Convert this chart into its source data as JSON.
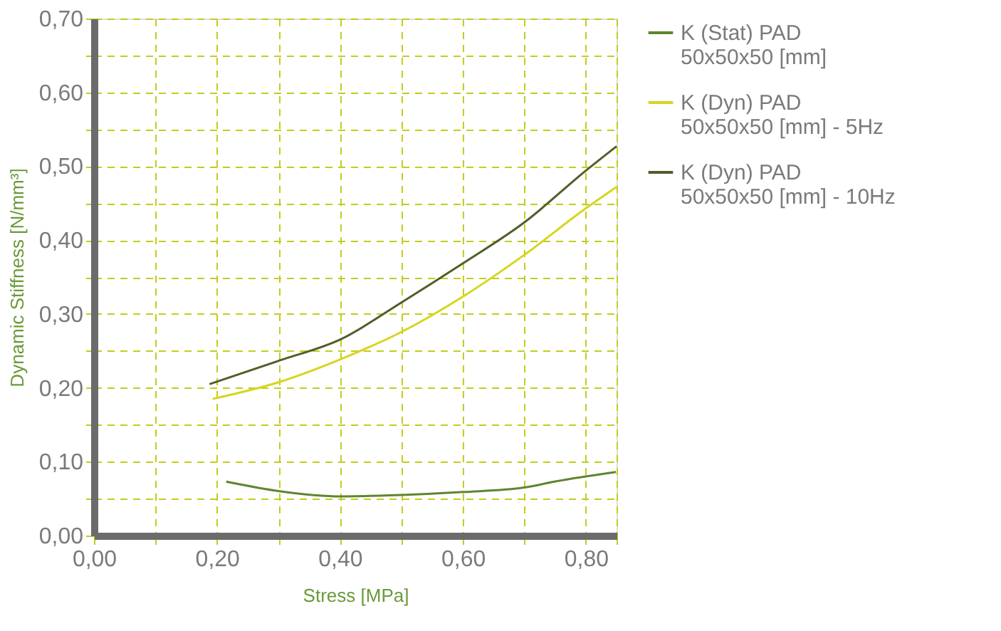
{
  "chart_data": {
    "type": "line",
    "xlabel": "Stress [MPa]",
    "ylabel": "Dynamic Stiffness [N/mm³]",
    "xlim": [
      0,
      0.85
    ],
    "ylim": [
      0,
      0.7
    ],
    "xticks": [
      {
        "value": 0,
        "label": "0,00"
      },
      {
        "value": 0.1,
        "label": null
      },
      {
        "value": 0.2,
        "label": "0,20"
      },
      {
        "value": 0.3,
        "label": null
      },
      {
        "value": 0.4,
        "label": "0,40"
      },
      {
        "value": 0.5,
        "label": null
      },
      {
        "value": 0.6,
        "label": "0,60"
      },
      {
        "value": 0.7,
        "label": null
      },
      {
        "value": 0.8,
        "label": "0,80"
      },
      {
        "value": 0.85,
        "label": null
      }
    ],
    "yticks": [
      {
        "value": 0,
        "label": "0,00"
      },
      {
        "value": 0.05,
        "label": null
      },
      {
        "value": 0.1,
        "label": "0,10"
      },
      {
        "value": 0.15,
        "label": null
      },
      {
        "value": 0.2,
        "label": "0,20"
      },
      {
        "value": 0.25,
        "label": null
      },
      {
        "value": 0.3,
        "label": "0,30"
      },
      {
        "value": 0.35,
        "label": null
      },
      {
        "value": 0.4,
        "label": "0,40"
      },
      {
        "value": 0.45,
        "label": null
      },
      {
        "value": 0.5,
        "label": "0,50"
      },
      {
        "value": 0.55,
        "label": null
      },
      {
        "value": 0.6,
        "label": "0,60"
      },
      {
        "value": 0.65,
        "label": null
      },
      {
        "value": 0.7,
        "label": "0,70"
      }
    ],
    "grid": true,
    "legend": "right",
    "marker": "none",
    "line_style": "solid",
    "series": [
      {
        "name": "K (Stat) PAD\n50x50x50 [mm]",
        "color": "#5e8530",
        "x": [
          0.215,
          0.302,
          0.402,
          0.501,
          0.601,
          0.7,
          0.749,
          0.849
        ],
        "values": [
          0.073,
          0.06,
          0.053,
          0.055,
          0.059,
          0.065,
          0.073,
          0.086
        ]
      },
      {
        "name": "K (Dyn) PAD\n50x50x50 [mm] - 5Hz",
        "color": "#d6d61e",
        "x": [
          0.193,
          0.302,
          0.402,
          0.501,
          0.601,
          0.7,
          0.8,
          0.85
        ],
        "values": [
          0.185,
          0.208,
          0.239,
          0.276,
          0.324,
          0.38,
          0.443,
          0.472
        ]
      },
      {
        "name": "K (Dyn) PAD\n50x50x50 [mm] - 10Hz",
        "color": "#525e2a",
        "x": [
          0.188,
          0.302,
          0.402,
          0.501,
          0.601,
          0.7,
          0.8,
          0.85
        ],
        "values": [
          0.205,
          0.237,
          0.266,
          0.316,
          0.369,
          0.424,
          0.494,
          0.527
        ]
      }
    ]
  }
}
